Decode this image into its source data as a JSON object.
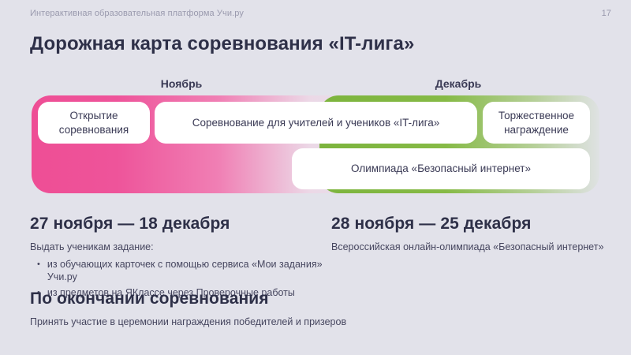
{
  "header": {
    "platform_label": "Интерактивная образовательная платформа Учи.ру",
    "page_number": "17"
  },
  "title": "Дорожная карта соревнования «IT-лига»",
  "roadmap": {
    "months": [
      {
        "label": "Ноябрь"
      },
      {
        "label": "Декабрь"
      }
    ],
    "stages": {
      "opening": "Открытие соревнования",
      "contest": "Соревнование для учителей и учеников «IT-лига»",
      "awarding": "Торжественное награждение",
      "olympiad": "Олимпиада  «Безопасный интернет»"
    },
    "colors": {
      "november_pink": "#ee4e95",
      "december_green": "#7eb53e",
      "background": "#e2e2ea"
    }
  },
  "sections": [
    {
      "heading": "27 ноября — 18 декабря",
      "intro": "Выдать ученикам задание:",
      "bullets": [
        "из обучающих карточек с помощью сервиса «Мои задания» Учи.ру",
        "из предметов на ЯКлассе через Проверочные работы"
      ]
    },
    {
      "heading": "28 ноября — 25 декабря",
      "intro": "Всероссийская онлайн-олимпиада «Безопасный интернет»"
    },
    {
      "heading": "По окончании соревнования",
      "intro": "Принять участие в церемонии награждения победителей и призеров"
    }
  ]
}
